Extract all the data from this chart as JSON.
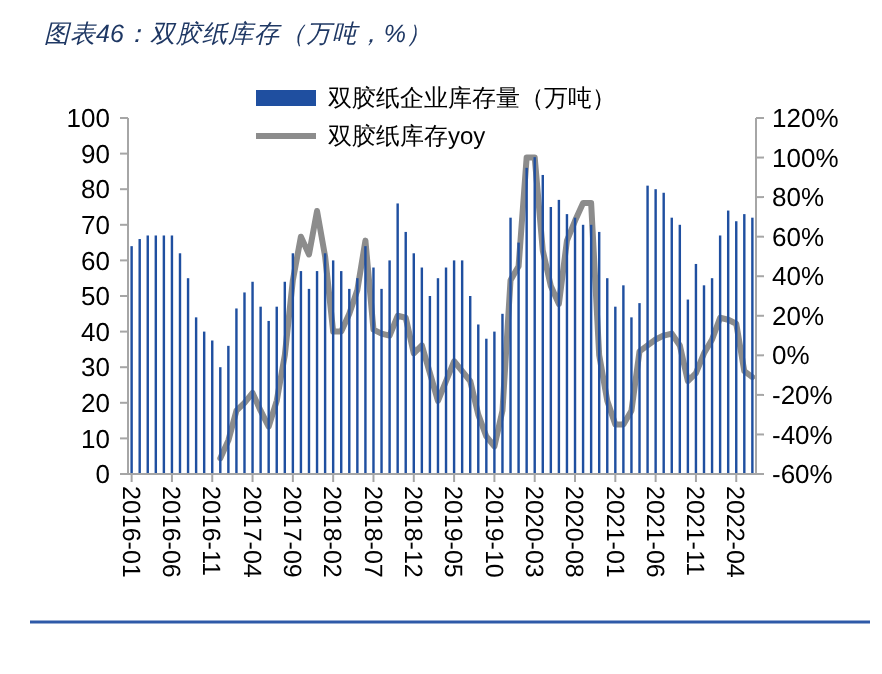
{
  "chart_data": {
    "type": "bar",
    "title": "图表46：双胶纸库存（万吨，%）",
    "categories": [
      "2016-01",
      null,
      null,
      null,
      null,
      "2016-06",
      null,
      null,
      null,
      null,
      "2016-11",
      null,
      null,
      null,
      null,
      "2017-04",
      null,
      null,
      null,
      null,
      "2017-09",
      null,
      null,
      null,
      null,
      "2018-02",
      null,
      null,
      null,
      null,
      "2018-07",
      null,
      null,
      null,
      null,
      "2018-12",
      null,
      null,
      null,
      null,
      "2019-05",
      null,
      null,
      null,
      null,
      "2019-10",
      null,
      null,
      null,
      null,
      "2020-03",
      null,
      null,
      null,
      null,
      "2020-08",
      null,
      null,
      null,
      null,
      "2021-01",
      null,
      null,
      null,
      null,
      "2021-06",
      null,
      null,
      null,
      null,
      "2021-11",
      null,
      null,
      null,
      null,
      "2022-04",
      null,
      null
    ],
    "series": [
      {
        "name": "双胶纸企业库存量（万吨）",
        "color": "#1f4fa0",
        "values": [
          64,
          66,
          67,
          67,
          67,
          67,
          62,
          55,
          44,
          40,
          37.5,
          30,
          36,
          46.5,
          51,
          54,
          47,
          43,
          47,
          54,
          62,
          57,
          52,
          57,
          62,
          60,
          57,
          52,
          55,
          64,
          58,
          52,
          60,
          76,
          68,
          62,
          58,
          50,
          55,
          58,
          60,
          60,
          50,
          42,
          38,
          40,
          45,
          72,
          65,
          86,
          89,
          84,
          75,
          77,
          73,
          72,
          70,
          70,
          68,
          55,
          47,
          53,
          44,
          48,
          81,
          80,
          79,
          72,
          70,
          49,
          59,
          53,
          55,
          67,
          74,
          71,
          73,
          72
        ]
      },
      {
        "name": "双胶纸库存yoy",
        "type": "line",
        "axis": "y2",
        "color": "#8c8c8c",
        "values": [
          null,
          null,
          null,
          null,
          null,
          null,
          null,
          null,
          null,
          null,
          null,
          -52,
          -43,
          -28,
          -24,
          -19,
          -28,
          -36,
          -23,
          0,
          38,
          60,
          51,
          73,
          50,
          12,
          12,
          21,
          33,
          58,
          13,
          11,
          10,
          20,
          19,
          1,
          5,
          -9,
          -23,
          -13,
          -3,
          -8,
          -13,
          -30,
          -41,
          -46,
          -28,
          38,
          45,
          100,
          100,
          53,
          35,
          26,
          58,
          68,
          77,
          77,
          0,
          -23,
          -35,
          -35,
          -28,
          2,
          5,
          8,
          10,
          11,
          5,
          -13,
          -9,
          1,
          8,
          19,
          18,
          16,
          -8,
          -11
        ]
      }
    ],
    "ylim": [
      0,
      100
    ],
    "yticks": [
      0,
      10,
      20,
      30,
      40,
      50,
      60,
      70,
      80,
      90,
      100
    ],
    "y2lim": [
      -60,
      120
    ],
    "y2ticks": [
      {
        "value": -60,
        "label": "-60%"
      },
      {
        "value": -40,
        "label": "-40%"
      },
      {
        "value": -20,
        "label": "-20%"
      },
      {
        "value": 0,
        "label": "0%"
      },
      {
        "value": 20,
        "label": "20%"
      },
      {
        "value": 40,
        "label": "40%"
      },
      {
        "value": 60,
        "label": "60%"
      },
      {
        "value": 80,
        "label": "80%"
      },
      {
        "value": 100,
        "label": "100%"
      },
      {
        "value": 120,
        "label": "120%"
      }
    ],
    "grid": false,
    "legend": "top"
  }
}
